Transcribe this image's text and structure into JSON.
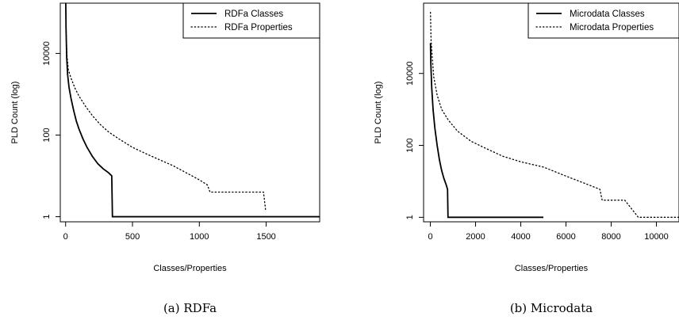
{
  "chart_data": [
    {
      "type": "line",
      "caption": "(a) RDFa",
      "xlabel": "Classes/Properties",
      "ylabel": "PLD Count (log)",
      "y_scale": "log",
      "xlim": [
        -40,
        1900
      ],
      "ylim": [
        0.75,
        170000
      ],
      "xticks": [
        0,
        500,
        1000,
        1500
      ],
      "yticks": [
        1,
        100,
        10000
      ],
      "legend_position": "top-right",
      "series": [
        {
          "name": "RDFa Classes",
          "line_style": "solid",
          "points": [
            [
              1,
              170000
            ],
            [
              3,
              40000
            ],
            [
              8,
              8000
            ],
            [
              15,
              3000
            ],
            [
              25,
              1500
            ],
            [
              40,
              800
            ],
            [
              60,
              400
            ],
            [
              80,
              220
            ],
            [
              100,
              140
            ],
            [
              130,
              80
            ],
            [
              160,
              50
            ],
            [
              200,
              30
            ],
            [
              240,
              20
            ],
            [
              280,
              15
            ],
            [
              320,
              12
            ],
            [
              345,
              10
            ],
            [
              350,
              1
            ],
            [
              1900,
              1
            ]
          ]
        },
        {
          "name": "RDFa Properties",
          "line_style": "dotted",
          "points": [
            [
              1,
              160000
            ],
            [
              5,
              25000
            ],
            [
              10,
              9000
            ],
            [
              20,
              4000
            ],
            [
              40,
              2500
            ],
            [
              70,
              1400
            ],
            [
              100,
              900
            ],
            [
              150,
              500
            ],
            [
              200,
              300
            ],
            [
              260,
              180
            ],
            [
              320,
              120
            ],
            [
              400,
              80
            ],
            [
              500,
              50
            ],
            [
              600,
              35
            ],
            [
              700,
              25
            ],
            [
              800,
              18
            ],
            [
              900,
              12
            ],
            [
              1000,
              8
            ],
            [
              1060,
              6
            ],
            [
              1080,
              4
            ],
            [
              1480,
              4
            ],
            [
              1495,
              1.5
            ]
          ]
        }
      ]
    },
    {
      "type": "line",
      "caption": "(b) Microdata",
      "xlabel": "Classes/Properties",
      "ylabel": "PLD Count (log)",
      "y_scale": "log",
      "xlim": [
        -300,
        11000
      ],
      "ylim": [
        0.75,
        900000
      ],
      "xticks": [
        0,
        2000,
        4000,
        6000,
        8000,
        10000
      ],
      "yticks": [
        1,
        100,
        10000
      ],
      "legend_position": "top-right",
      "series": [
        {
          "name": "Microdata Classes",
          "line_style": "solid",
          "points": [
            [
              5,
              70000
            ],
            [
              20,
              20000
            ],
            [
              60,
              4000
            ],
            [
              120,
              1000
            ],
            [
              200,
              300
            ],
            [
              300,
              100
            ],
            [
              400,
              40
            ],
            [
              500,
              20
            ],
            [
              600,
              12
            ],
            [
              700,
              8
            ],
            [
              760,
              6
            ],
            [
              780,
              1
            ],
            [
              5000,
              1
            ]
          ]
        },
        {
          "name": "Microdata Properties",
          "line_style": "dotted",
          "points": [
            [
              5,
              500000
            ],
            [
              30,
              90000
            ],
            [
              80,
              30000
            ],
            [
              150,
              8000
            ],
            [
              300,
              2500
            ],
            [
              500,
              1000
            ],
            [
              800,
              500
            ],
            [
              1200,
              250
            ],
            [
              1800,
              130
            ],
            [
              2500,
              80
            ],
            [
              3200,
              50
            ],
            [
              4000,
              35
            ],
            [
              5000,
              25
            ],
            [
              6000,
              14
            ],
            [
              7000,
              8
            ],
            [
              7500,
              6
            ],
            [
              7600,
              3
            ],
            [
              8600,
              3
            ],
            [
              9200,
              1
            ],
            [
              11000,
              1
            ]
          ]
        }
      ]
    }
  ]
}
